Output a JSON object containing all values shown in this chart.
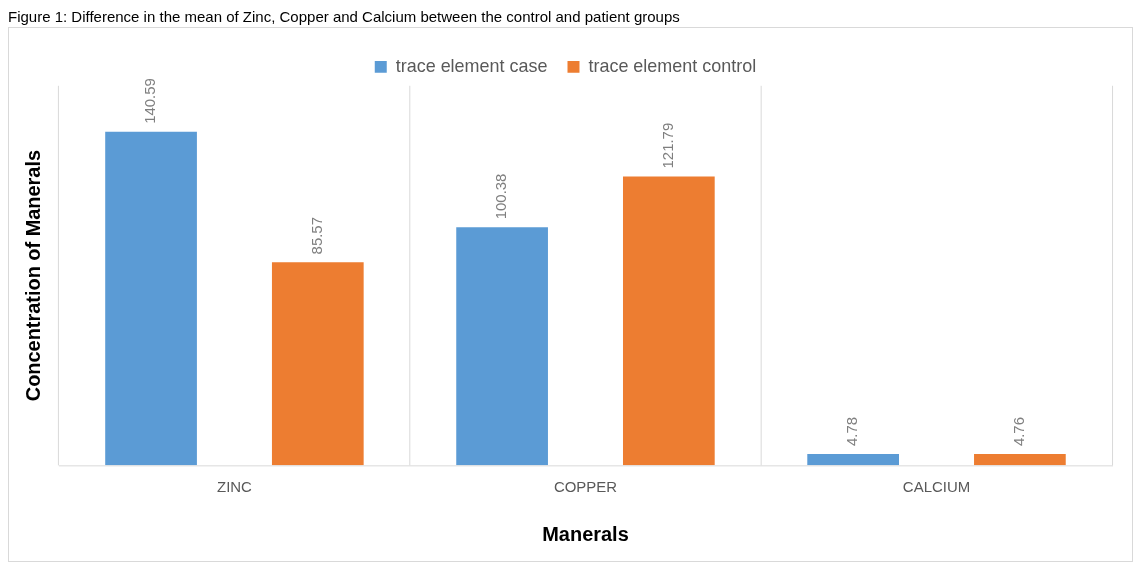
{
  "chart_data": {
    "type": "bar",
    "title": "Figure 1: Difference in the mean of Zinc, Copper and Calcium between the control and patient groups",
    "xlabel": "Manerals",
    "ylabel": "Concentration of Manerals",
    "categories": [
      "ZINC",
      "COPPER",
      "CALCIUM"
    ],
    "series": [
      {
        "name": "trace element case",
        "color": "#5b9bd5",
        "values": [
          140.59,
          100.38,
          4.78
        ]
      },
      {
        "name": "trace element control",
        "color": "#ed7d31",
        "values": [
          85.57,
          121.79,
          4.76
        ]
      }
    ],
    "data_labels": true,
    "grid": "x",
    "legend": "top"
  }
}
